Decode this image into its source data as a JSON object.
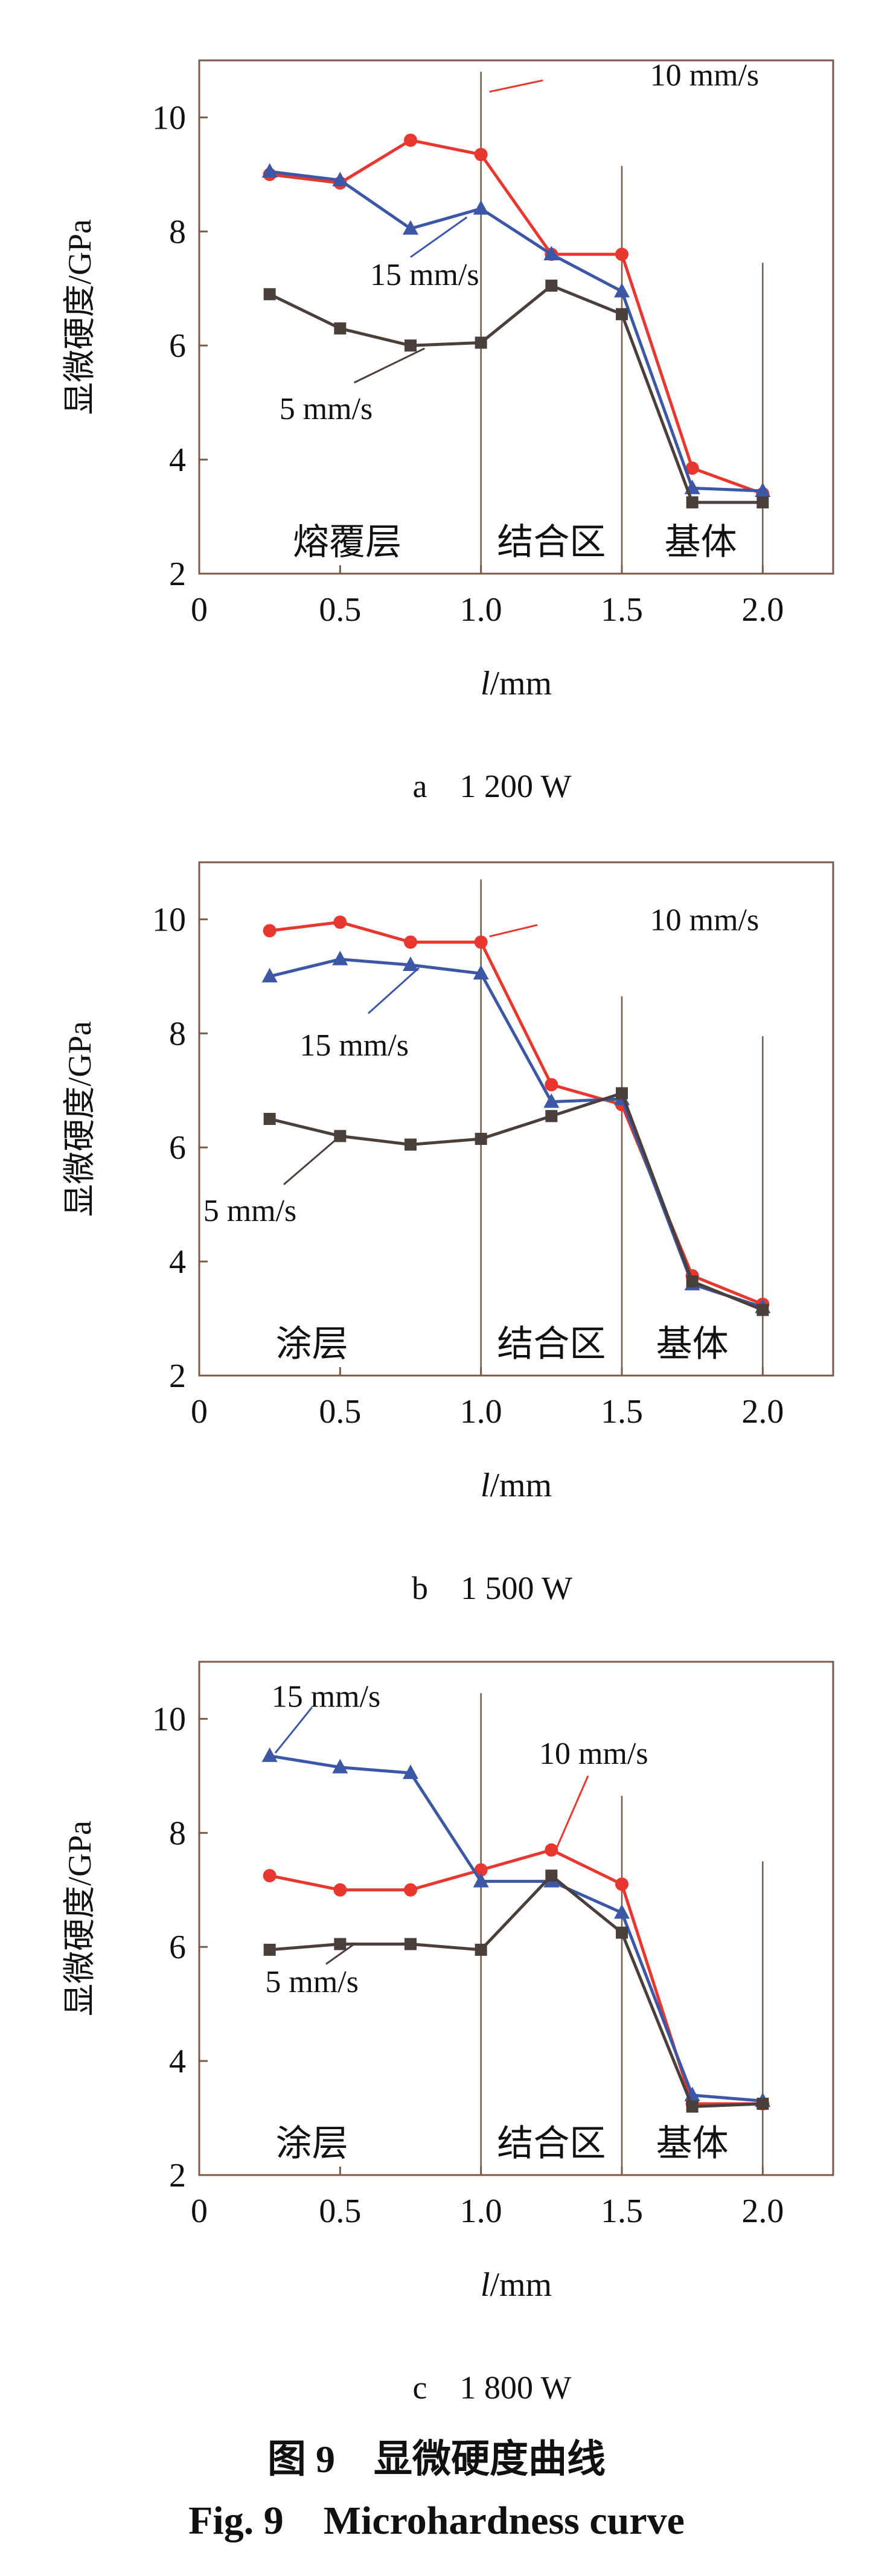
{
  "figure": {
    "caption_cn": "图 9　显微硬度曲线",
    "caption_en": "Fig. 9　Microhardness curve"
  },
  "chart_data": [
    {
      "type": "line",
      "subcaption": "a　1 200 W",
      "ylabel": "显微硬度/GPa",
      "xlabel": "l/mm",
      "xlim": [
        0,
        2.25
      ],
      "ylim": [
        2,
        11
      ],
      "xticks": [
        "0",
        "0.5",
        "1.0",
        "1.5",
        "2.0"
      ],
      "yticks": [
        "2",
        "4",
        "6",
        "8",
        "10"
      ],
      "region_labels": [
        "熔覆层",
        "结合区",
        "基体"
      ],
      "x": [
        0.25,
        0.5,
        0.75,
        1.0,
        1.25,
        1.5,
        1.75,
        2.0
      ],
      "series": [
        {
          "name": "10 mm/s",
          "color": "#e8372f",
          "marker": "circle",
          "values": [
            9.0,
            8.85,
            9.6,
            9.35,
            7.6,
            7.6,
            3.85,
            3.4
          ]
        },
        {
          "name": "15 mm/s",
          "color": "#3b57a6",
          "marker": "triangle",
          "values": [
            9.05,
            8.9,
            8.05,
            8.4,
            7.6,
            6.95,
            3.5,
            3.45
          ]
        },
        {
          "name": "5 mm/s",
          "color": "#4a3f3a",
          "marker": "square",
          "values": [
            6.9,
            6.3,
            6.0,
            6.05,
            7.05,
            6.55,
            3.25,
            3.25
          ]
        }
      ]
    },
    {
      "type": "line",
      "subcaption": "b　1 500 W",
      "ylabel": "显微硬度/GPa",
      "xlabel": "l/mm",
      "xlim": [
        0,
        2.25
      ],
      "ylim": [
        2,
        11
      ],
      "xticks": [
        "0",
        "0.5",
        "1.0",
        "1.5",
        "2.0"
      ],
      "yticks": [
        "2",
        "4",
        "6",
        "8",
        "10"
      ],
      "region_labels": [
        "涂层",
        "结合区",
        "基体"
      ],
      "x": [
        0.25,
        0.5,
        0.75,
        1.0,
        1.25,
        1.5,
        1.75,
        2.0
      ],
      "series": [
        {
          "name": "10 mm/s",
          "color": "#e8372f",
          "marker": "circle",
          "values": [
            9.8,
            9.95,
            9.6,
            9.6,
            7.1,
            6.75,
            3.75,
            3.25
          ]
        },
        {
          "name": "15 mm/s",
          "color": "#3b57a6",
          "marker": "triangle",
          "values": [
            9.0,
            9.3,
            9.2,
            9.05,
            6.8,
            6.85,
            3.6,
            3.2
          ]
        },
        {
          "name": "5 mm/s",
          "color": "#4a3f3a",
          "marker": "square",
          "values": [
            6.5,
            6.2,
            6.05,
            6.15,
            6.55,
            6.95,
            3.65,
            3.15
          ]
        }
      ]
    },
    {
      "type": "line",
      "subcaption": "c　1 800 W",
      "ylabel": "显微硬度/GPa",
      "xlabel": "l/mm",
      "xlim": [
        0,
        2.25
      ],
      "ylim": [
        2,
        11
      ],
      "xticks": [
        "0",
        "0.5",
        "1.0",
        "1.5",
        "2.0"
      ],
      "yticks": [
        "2",
        "4",
        "6",
        "8",
        "10"
      ],
      "region_labels": [
        "涂层",
        "结合区",
        "基体"
      ],
      "x": [
        0.25,
        0.5,
        0.75,
        1.0,
        1.25,
        1.5,
        1.75,
        2.0
      ],
      "series": [
        {
          "name": "10 mm/s",
          "color": "#e8372f",
          "marker": "circle",
          "values": [
            7.25,
            7.0,
            7.0,
            7.35,
            7.7,
            7.1,
            3.25,
            3.25
          ]
        },
        {
          "name": "15 mm/s",
          "color": "#3b57a6",
          "marker": "triangle",
          "values": [
            9.35,
            9.15,
            9.05,
            7.15,
            7.15,
            6.6,
            3.4,
            3.3
          ]
        },
        {
          "name": "5 mm/s",
          "color": "#4a3f3a",
          "marker": "square",
          "values": [
            5.95,
            6.05,
            6.05,
            5.95,
            7.25,
            6.25,
            3.2,
            3.25
          ]
        }
      ]
    }
  ]
}
